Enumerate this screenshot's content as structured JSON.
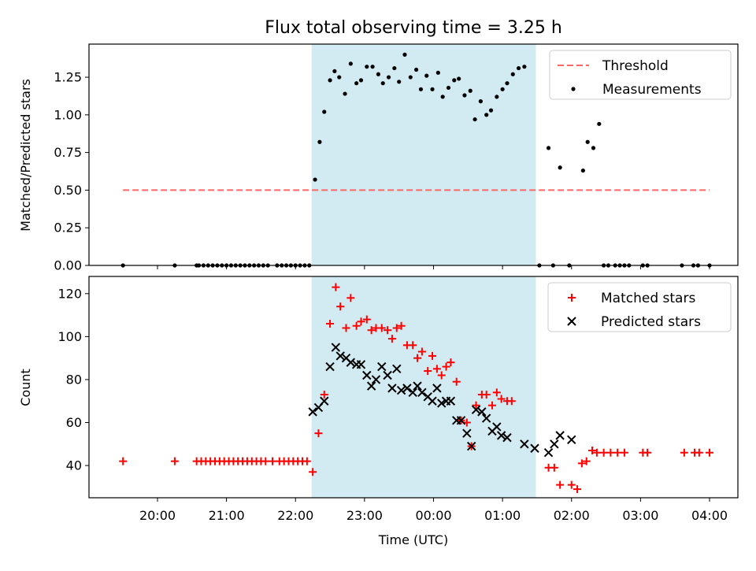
{
  "chart_data": [
    {
      "type": "scatter",
      "title": "Flux total observing time = 3.25 h",
      "xlabel": "",
      "ylabel": "Matched/Predicted stars",
      "ylim": [
        0,
        1.47
      ],
      "yticks": [
        "0.00",
        "0.25",
        "0.50",
        "0.75",
        "1.00",
        "1.25"
      ],
      "highlight_span": {
        "start": "22:14",
        "end": "01:29",
        "color": "#add8e6"
      },
      "legend": {
        "position": "top-right",
        "entries": [
          "Threshold",
          "Measurements"
        ]
      },
      "threshold": {
        "name": "Threshold",
        "value": 0.5,
        "x_range": [
          "19:30",
          "04:00"
        ],
        "color": "#ff6666",
        "style": "dashed"
      },
      "series": [
        {
          "name": "Measurements",
          "color": "#000000",
          "marker": "dot",
          "points": [
            [
              "19:30",
              0
            ],
            [
              "20:15",
              0
            ],
            [
              "20:34",
              0
            ],
            [
              "20:36",
              0
            ],
            [
              "20:40",
              0
            ],
            [
              "20:44",
              0
            ],
            [
              "20:48",
              0
            ],
            [
              "20:52",
              0
            ],
            [
              "20:56",
              0
            ],
            [
              "21:00",
              0
            ],
            [
              "21:04",
              0
            ],
            [
              "21:08",
              0
            ],
            [
              "21:12",
              0
            ],
            [
              "21:16",
              0
            ],
            [
              "21:20",
              0
            ],
            [
              "21:24",
              0
            ],
            [
              "21:28",
              0
            ],
            [
              "21:32",
              0
            ],
            [
              "21:36",
              0
            ],
            [
              "21:44",
              0
            ],
            [
              "21:48",
              0
            ],
            [
              "21:52",
              0
            ],
            [
              "21:56",
              0
            ],
            [
              "22:00",
              0
            ],
            [
              "22:04",
              0
            ],
            [
              "22:08",
              0
            ],
            [
              "22:12",
              0
            ],
            [
              "22:17",
              0.57
            ],
            [
              "22:21",
              0.82
            ],
            [
              "22:25",
              1.02
            ],
            [
              "22:30",
              1.23
            ],
            [
              "22:34",
              1.29
            ],
            [
              "22:38",
              1.25
            ],
            [
              "22:43",
              1.14
            ],
            [
              "22:48",
              1.34
            ],
            [
              "22:53",
              1.21
            ],
            [
              "22:57",
              1.23
            ],
            [
              "23:02",
              1.32
            ],
            [
              "23:07",
              1.32
            ],
            [
              "23:12",
              1.27
            ],
            [
              "23:16",
              1.21
            ],
            [
              "23:21",
              1.25
            ],
            [
              "23:26",
              1.31
            ],
            [
              "23:30",
              1.22
            ],
            [
              "23:35",
              1.4
            ],
            [
              "23:40",
              1.25
            ],
            [
              "23:45",
              1.3
            ],
            [
              "23:49",
              1.17
            ],
            [
              "23:54",
              1.26
            ],
            [
              "23:59",
              1.17
            ],
            [
              "00:04",
              1.28
            ],
            [
              "00:08",
              1.12
            ],
            [
              "00:13",
              1.18
            ],
            [
              "00:18",
              1.23
            ],
            [
              "00:22",
              1.24
            ],
            [
              "00:27",
              1.13
            ],
            [
              "00:32",
              1.16
            ],
            [
              "00:36",
              0.97
            ],
            [
              "00:41",
              1.09
            ],
            [
              "00:46",
              1.0
            ],
            [
              "00:50",
              1.03
            ],
            [
              "00:55",
              1.12
            ],
            [
              "01:00",
              1.17
            ],
            [
              "01:04",
              1.21
            ],
            [
              "01:09",
              1.27
            ],
            [
              "01:14",
              1.31
            ],
            [
              "01:19",
              1.32
            ],
            [
              "01:32",
              0
            ],
            [
              "01:40",
              0.78
            ],
            [
              "01:44",
              0
            ],
            [
              "01:50",
              0.65
            ],
            [
              "01:58",
              0
            ],
            [
              "02:10",
              0.63
            ],
            [
              "02:14",
              0.82
            ],
            [
              "02:19",
              0.78
            ],
            [
              "02:24",
              0.94
            ],
            [
              "02:28",
              0
            ],
            [
              "02:32",
              0
            ],
            [
              "02:38",
              0
            ],
            [
              "02:42",
              0
            ],
            [
              "02:46",
              0
            ],
            [
              "02:50",
              0
            ],
            [
              "03:02",
              0
            ],
            [
              "03:06",
              0
            ],
            [
              "03:36",
              0
            ],
            [
              "03:46",
              0
            ],
            [
              "03:50",
              0
            ],
            [
              "04:00",
              0
            ]
          ]
        }
      ]
    },
    {
      "type": "scatter",
      "title": "",
      "xlabel": "Time (UTC)",
      "ylabel": "Count",
      "ylim": [
        25,
        128
      ],
      "yticks": [
        "40",
        "60",
        "80",
        "100",
        "120"
      ],
      "x_ticks": [
        "20:00",
        "21:00",
        "22:00",
        "23:00",
        "00:00",
        "01:00",
        "02:00",
        "03:00",
        "04:00"
      ],
      "highlight_span": {
        "start": "22:14",
        "end": "01:29",
        "color": "#add8e6"
      },
      "legend": {
        "position": "top-right",
        "entries": [
          "Matched stars",
          "Predicted stars"
        ]
      },
      "series": [
        {
          "name": "Matched stars",
          "color": "#ff0000",
          "marker": "plus",
          "points": [
            [
              "19:30",
              42
            ],
            [
              "20:15",
              42
            ],
            [
              "20:34",
              42
            ],
            [
              "20:38",
              42
            ],
            [
              "20:42",
              42
            ],
            [
              "20:46",
              42
            ],
            [
              "20:50",
              42
            ],
            [
              "20:54",
              42
            ],
            [
              "20:58",
              42
            ],
            [
              "21:02",
              42
            ],
            [
              "21:06",
              42
            ],
            [
              "21:10",
              42
            ],
            [
              "21:14",
              42
            ],
            [
              "21:18",
              42
            ],
            [
              "21:22",
              42
            ],
            [
              "21:26",
              42
            ],
            [
              "21:30",
              42
            ],
            [
              "21:34",
              42
            ],
            [
              "21:40",
              42
            ],
            [
              "21:46",
              42
            ],
            [
              "21:50",
              42
            ],
            [
              "21:54",
              42
            ],
            [
              "21:58",
              42
            ],
            [
              "22:02",
              42
            ],
            [
              "22:06",
              42
            ],
            [
              "22:10",
              42
            ],
            [
              "22:15",
              37
            ],
            [
              "22:20",
              55
            ],
            [
              "22:25",
              73
            ],
            [
              "22:30",
              106
            ],
            [
              "22:35",
              123
            ],
            [
              "22:39",
              114
            ],
            [
              "22:44",
              104
            ],
            [
              "22:48",
              118
            ],
            [
              "22:53",
              105
            ],
            [
              "22:57",
              107
            ],
            [
              "23:02",
              108
            ],
            [
              "23:06",
              103
            ],
            [
              "23:10",
              104
            ],
            [
              "23:15",
              104
            ],
            [
              "23:20",
              103
            ],
            [
              "23:24",
              99
            ],
            [
              "23:28",
              104
            ],
            [
              "23:32",
              105
            ],
            [
              "23:37",
              96
            ],
            [
              "23:42",
              96
            ],
            [
              "23:46",
              90
            ],
            [
              "23:50",
              93
            ],
            [
              "23:55",
              84
            ],
            [
              "23:59",
              91
            ],
            [
              "00:03",
              85
            ],
            [
              "00:07",
              82
            ],
            [
              "00:11",
              86
            ],
            [
              "00:15",
              88
            ],
            [
              "00:20",
              79
            ],
            [
              "00:24",
              61
            ],
            [
              "00:29",
              60
            ],
            [
              "00:33",
              49
            ],
            [
              "00:37",
              68
            ],
            [
              "00:42",
              73
            ],
            [
              "00:46",
              73
            ],
            [
              "00:51",
              68
            ],
            [
              "00:55",
              74
            ],
            [
              "00:59",
              71
            ],
            [
              "01:04",
              70
            ],
            [
              "01:08",
              70
            ],
            [
              "01:40",
              39
            ],
            [
              "01:45",
              39
            ],
            [
              "01:50",
              31
            ],
            [
              "02:00",
              31
            ],
            [
              "02:05",
              29
            ],
            [
              "02:09",
              41
            ],
            [
              "02:13",
              42
            ],
            [
              "02:18",
              47
            ],
            [
              "02:22",
              46
            ],
            [
              "02:28",
              46
            ],
            [
              "02:34",
              46
            ],
            [
              "02:40",
              46
            ],
            [
              "02:46",
              46
            ],
            [
              "03:02",
              46
            ],
            [
              "03:06",
              46
            ],
            [
              "03:38",
              46
            ],
            [
              "03:47",
              46
            ],
            [
              "03:51",
              46
            ],
            [
              "04:00",
              46
            ]
          ]
        },
        {
          "name": "Predicted stars",
          "color": "#000000",
          "marker": "x",
          "points": [
            [
              "22:15",
              65
            ],
            [
              "22:20",
              67
            ],
            [
              "22:25",
              70
            ],
            [
              "22:30",
              86
            ],
            [
              "22:35",
              95
            ],
            [
              "22:39",
              91
            ],
            [
              "22:44",
              90
            ],
            [
              "22:48",
              88
            ],
            [
              "22:53",
              87
            ],
            [
              "22:57",
              87
            ],
            [
              "23:02",
              82
            ],
            [
              "23:06",
              77
            ],
            [
              "23:10",
              80
            ],
            [
              "23:15",
              86
            ],
            [
              "23:20",
              82
            ],
            [
              "23:24",
              76
            ],
            [
              "23:28",
              85
            ],
            [
              "23:32",
              75
            ],
            [
              "23:37",
              76
            ],
            [
              "23:42",
              74
            ],
            [
              "23:46",
              77
            ],
            [
              "23:50",
              74
            ],
            [
              "23:55",
              72
            ],
            [
              "23:59",
              70
            ],
            [
              "00:03",
              76
            ],
            [
              "00:07",
              69
            ],
            [
              "00:11",
              70
            ],
            [
              "00:15",
              70
            ],
            [
              "00:20",
              61
            ],
            [
              "00:24",
              61
            ],
            [
              "00:29",
              55
            ],
            [
              "00:33",
              49
            ],
            [
              "00:37",
              66
            ],
            [
              "00:42",
              65
            ],
            [
              "00:46",
              62
            ],
            [
              "00:51",
              56
            ],
            [
              "00:55",
              58
            ],
            [
              "00:59",
              54
            ],
            [
              "01:04",
              53
            ],
            [
              "01:19",
              50
            ],
            [
              "01:28",
              48
            ],
            [
              "01:40",
              46
            ],
            [
              "01:45",
              50
            ],
            [
              "01:50",
              54
            ],
            [
              "02:00",
              52
            ]
          ]
        }
      ]
    }
  ]
}
